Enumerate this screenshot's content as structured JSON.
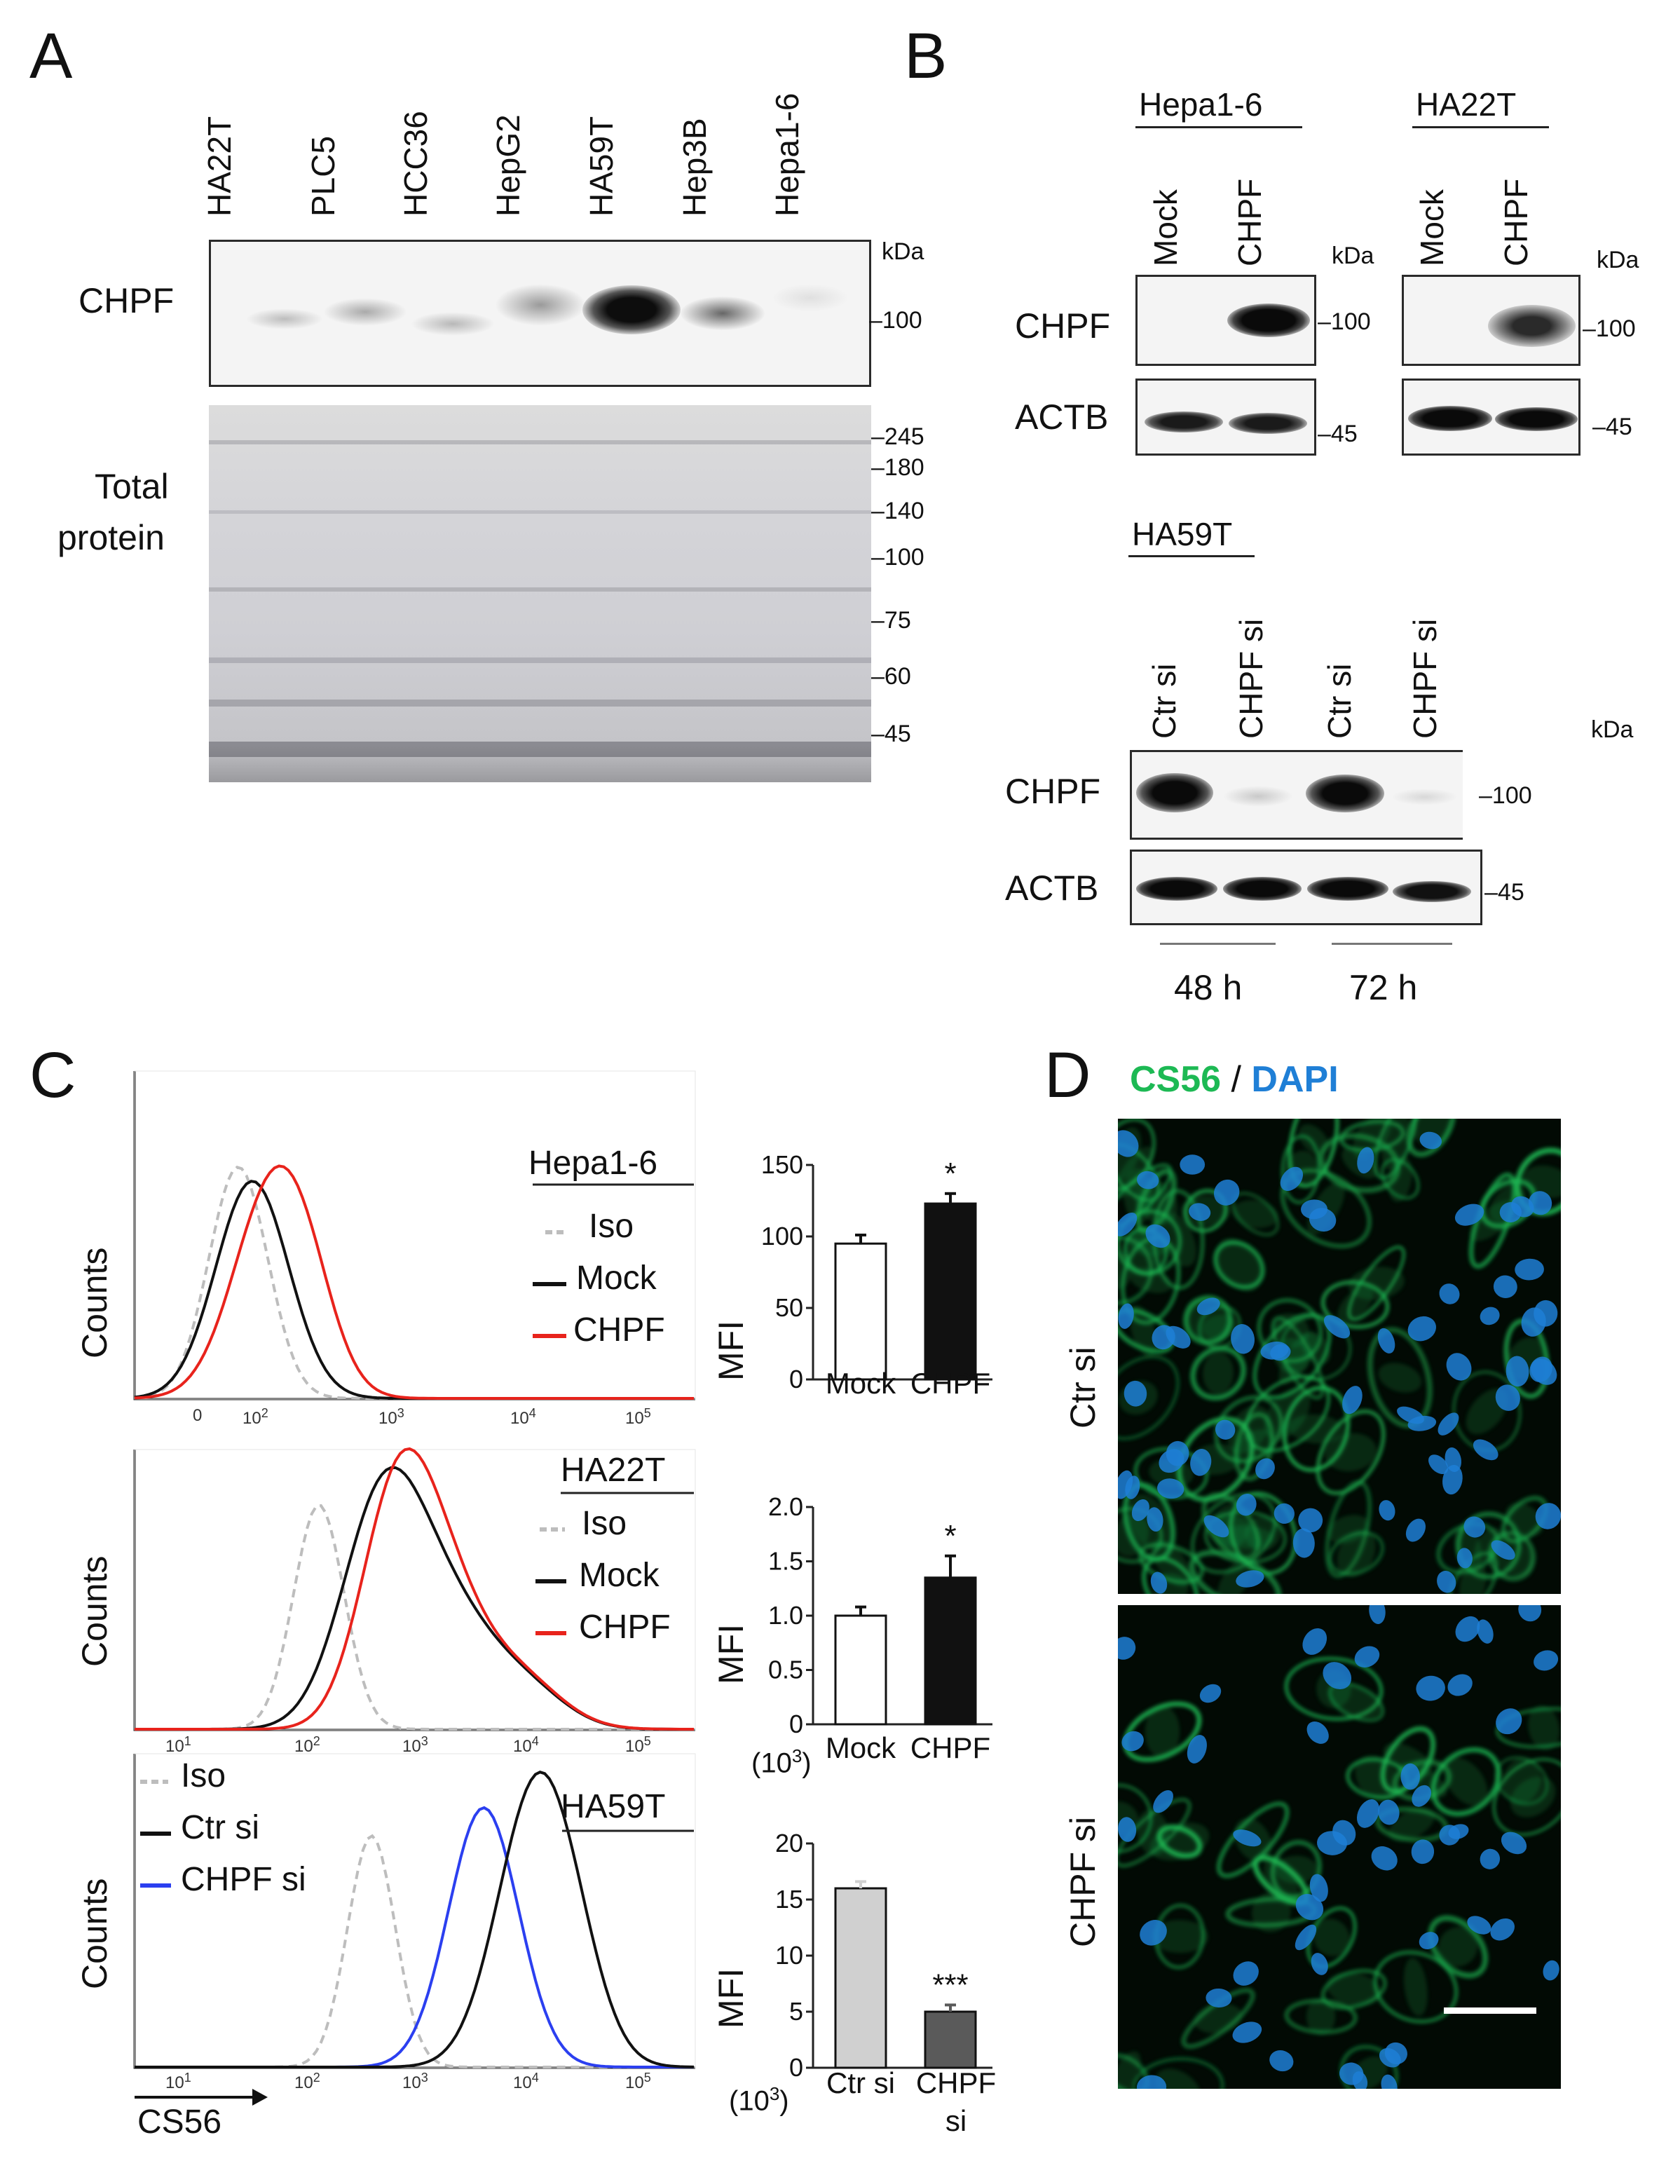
{
  "panels": {
    "A": "A",
    "B": "B",
    "C": "C",
    "D": "D"
  },
  "panelA": {
    "lanes": [
      "HA22T",
      "PLC5",
      "HCC36",
      "HepG2",
      "HA59T",
      "Hep3B",
      "Hepa1-6"
    ],
    "row_chpf": "CHPF",
    "row_total": [
      "Total",
      "protein"
    ],
    "kda": "kDa",
    "chpf_marker": "100",
    "total_markers": [
      "245",
      "180",
      "140",
      "100",
      "75",
      "60",
      "45"
    ]
  },
  "panelB": {
    "hepa_title": "Hepa1-6",
    "ha22t_title": "HA22T",
    "lanes_top": [
      "Mock",
      "CHPF"
    ],
    "rows": [
      "CHPF",
      "ACTB"
    ],
    "kda": "kDa",
    "markers": [
      "100",
      "45"
    ],
    "ha59t_title": "HA59T",
    "lanes_bottom": [
      "Ctr si",
      "CHPF si",
      "Ctr si",
      "CHPF si"
    ],
    "times": [
      "48 h",
      "72 h"
    ]
  },
  "panelC": {
    "y_label": "Counts",
    "x_label": "CS56",
    "hist1": {
      "title": "Hepa1-6",
      "legend": [
        "Iso",
        "Mock",
        "CHPF"
      ]
    },
    "hist2": {
      "title": "HA22T",
      "legend": [
        "Iso",
        "Mock",
        "CHPF"
      ]
    },
    "hist3": {
      "title": "HA59T",
      "legend": [
        "Iso",
        "Ctr si",
        "CHPF si"
      ]
    },
    "axis1_ticks": [
      "0",
      "10",
      "2",
      "10",
      "3",
      "10",
      "4",
      "10",
      "5"
    ],
    "axis_ticks": [
      "10",
      "1",
      "10",
      "2",
      "10",
      "3",
      "10",
      "4",
      "10",
      "5"
    ],
    "mfi_label": "MFI",
    "unit_prefix": "(10",
    "unit_exp": "3",
    "unit_close": ")",
    "colors": {
      "iso": "#bdbdbd",
      "mock": "#111111",
      "chpf": "#e8231c",
      "chpf_si": "#2b3ff0"
    }
  },
  "chart_data": [
    {
      "type": "bar",
      "categories": [
        "Mock",
        "CHPF"
      ],
      "values": [
        95,
        123
      ],
      "errors": [
        6,
        7
      ],
      "ylabel": "MFI",
      "ylim": [
        0,
        150
      ],
      "yticks": [
        "0",
        "50",
        "100",
        "150"
      ],
      "annotations": [
        "",
        "*"
      ]
    },
    {
      "type": "bar",
      "categories": [
        "Mock",
        "CHPF"
      ],
      "values": [
        1.0,
        1.35
      ],
      "errors": [
        0.08,
        0.2
      ],
      "ylabel": "MFI",
      "ylim": [
        0,
        2.0
      ],
      "yticks": [
        "0",
        "0.5",
        "1.0",
        "1.5",
        "2.0"
      ],
      "annotations": [
        "",
        "*"
      ]
    },
    {
      "type": "bar",
      "categories": [
        "Ctr si",
        "CHPF si"
      ],
      "values": [
        16,
        5
      ],
      "errors": [
        0.6,
        0.6
      ],
      "ylabel": "MFI",
      "ylim": [
        0,
        20
      ],
      "yticks": [
        "0",
        "5",
        "10",
        "15",
        "20"
      ],
      "annotations": [
        "",
        "***"
      ]
    }
  ],
  "panelD": {
    "title_cs56": "CS56",
    "title_sep": " / ",
    "title_dapi": "DAPI",
    "rows": [
      "Ctr si",
      "CHPF si"
    ],
    "colors": {
      "cs56": "#1db954",
      "dapi": "#1f7fd6"
    }
  }
}
